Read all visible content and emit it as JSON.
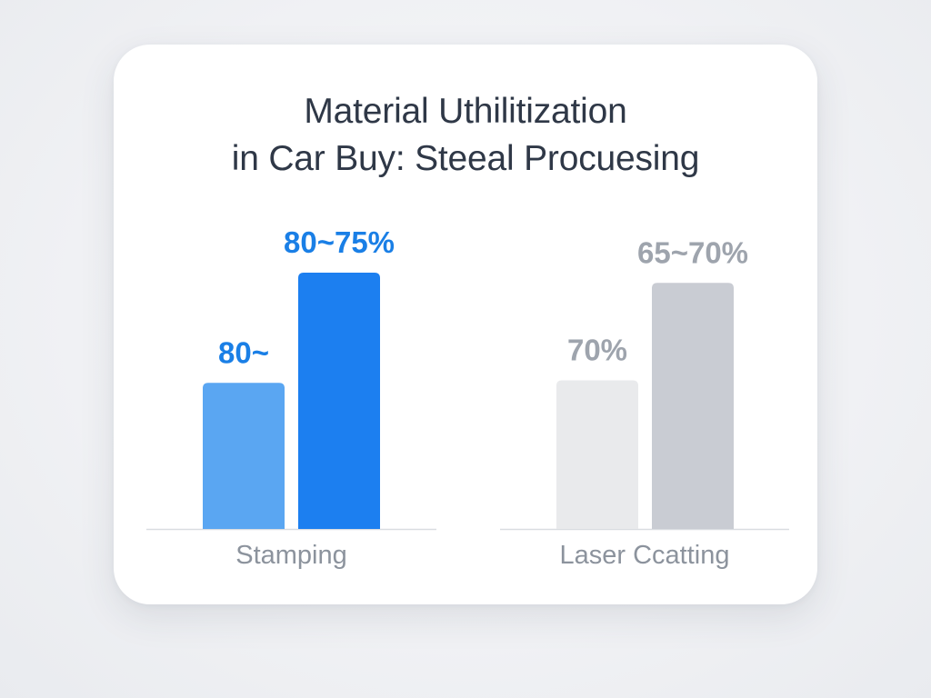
{
  "chart_data": {
    "type": "bar",
    "title_lines": [
      "Material Uthilitization",
      "in Car Buy: Steeal Procuesing"
    ],
    "ylim": [
      0,
      100
    ],
    "grid": false,
    "groups": [
      {
        "category": "Stamping",
        "bars": [
          {
            "value": 57,
            "label": "80~",
            "color": "#5aa6f2",
            "label_color": "#1a7fe6"
          },
          {
            "value": 100,
            "label": "80~75%",
            "color": "#1c7ff0",
            "label_color": "#1a7fe6"
          }
        ]
      },
      {
        "category": "Laser Ccatting",
        "bars": [
          {
            "value": 58,
            "label": "70%",
            "color": "#e9eaec",
            "label_color": "#9ea4ad"
          },
          {
            "value": 96,
            "label": "65~70%",
            "color": "#c9ccd3",
            "label_color": "#9ea4ad"
          }
        ]
      }
    ]
  }
}
